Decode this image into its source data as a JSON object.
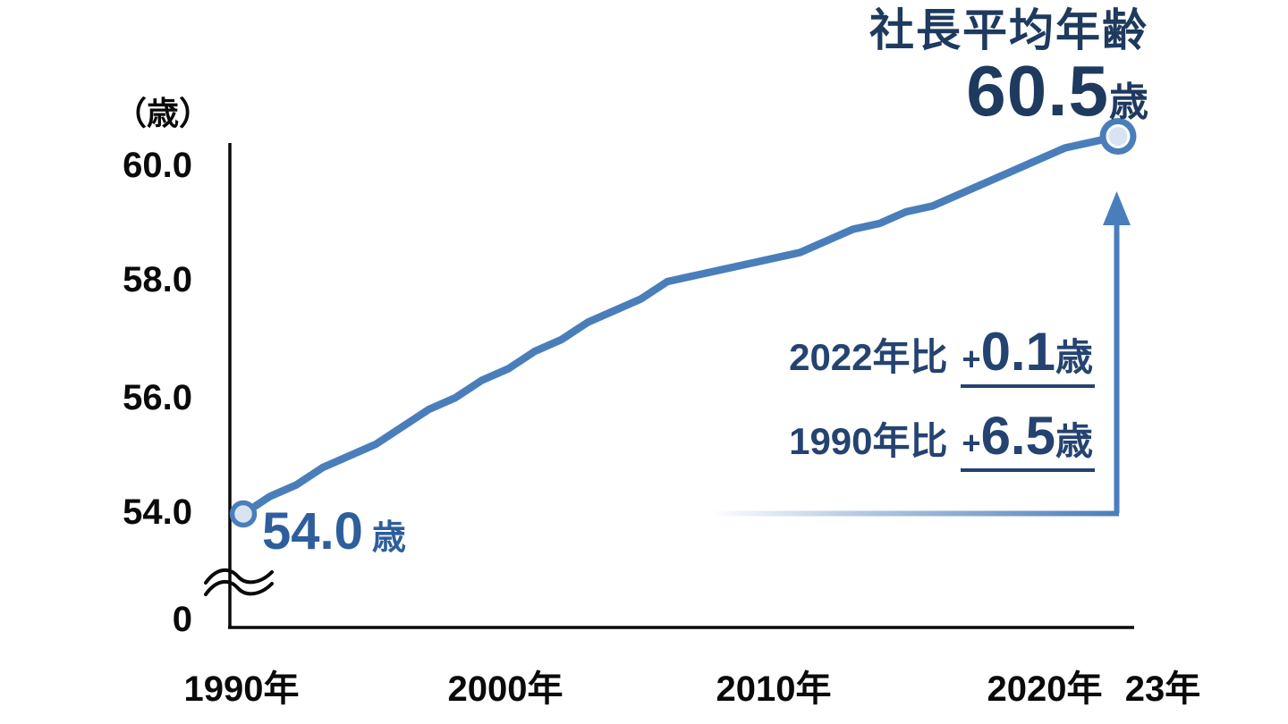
{
  "chart_data": {
    "type": "line",
    "title": "社長平均年齢",
    "y_axis_unit": "（歳）",
    "x_axis_unit": "年",
    "yticks": [
      "60.0",
      "58.0",
      "56.0",
      "54.0",
      "0"
    ],
    "xticks": [
      "1990年",
      "2000年",
      "2010年",
      "2020年",
      "23年"
    ],
    "ylim": [
      54.0,
      60.5
    ],
    "axis_break_above_zero": true,
    "legend_position": "none",
    "grid": false,
    "series": [
      {
        "name": "社長平均年齢",
        "x": [
          1990,
          1991,
          1992,
          1993,
          1994,
          1995,
          1996,
          1997,
          1998,
          1999,
          2000,
          2001,
          2002,
          2003,
          2004,
          2005,
          2006,
          2007,
          2008,
          2009,
          2010,
          2011,
          2012,
          2013,
          2014,
          2015,
          2016,
          2017,
          2018,
          2019,
          2020,
          2021,
          2022,
          2023
        ],
        "values": [
          54.0,
          54.3,
          54.5,
          54.8,
          55.0,
          55.2,
          55.5,
          55.8,
          56.0,
          56.3,
          56.5,
          56.8,
          57.0,
          57.3,
          57.5,
          57.7,
          58.0,
          58.1,
          58.2,
          58.3,
          58.4,
          58.5,
          58.7,
          58.9,
          59.0,
          59.2,
          59.3,
          59.5,
          59.7,
          59.9,
          60.1,
          60.3,
          60.4,
          60.5
        ]
      }
    ],
    "headline": {
      "label": "社長平均年齢",
      "value": "60.5",
      "unit": "歳"
    },
    "start_point_label": {
      "value": "54.0",
      "unit": "歳"
    },
    "annotations": [
      {
        "label": "2022年比",
        "plus": "+",
        "value": "0.1",
        "unit": "歳"
      },
      {
        "label": "1990年比",
        "plus": "+",
        "value": "6.5",
        "unit": "歳"
      }
    ],
    "colors": {
      "line": "#4A7EBB",
      "marker_fill": "#D9E4F2",
      "headline_navy": "#1E3A5E",
      "annotation_navy": "#254370",
      "start_label_blue": "#2E5E9C",
      "axis": "#0a0a0a"
    }
  }
}
